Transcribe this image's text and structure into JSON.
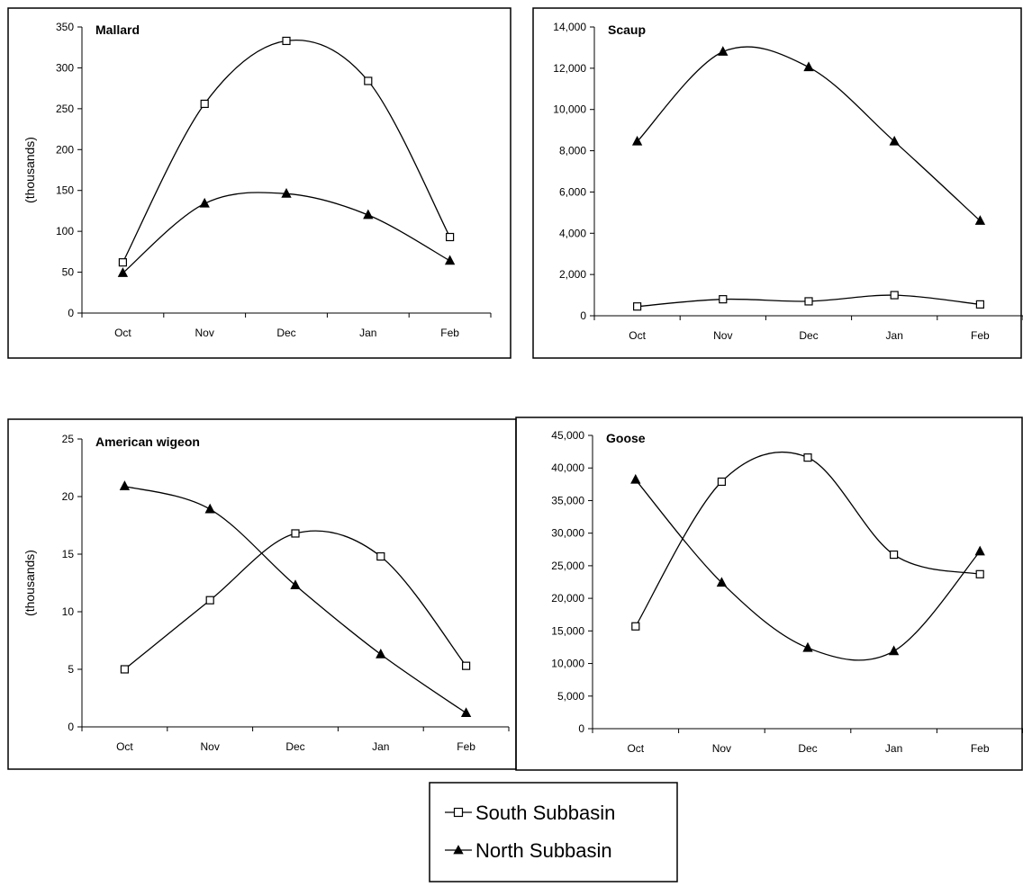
{
  "chart_data": [
    {
      "type": "line",
      "title": "Mallard",
      "ylabel": "(thousands)",
      "categories": [
        "Oct",
        "Nov",
        "Dec",
        "Jan",
        "Feb"
      ],
      "ylim": [
        0,
        350
      ],
      "yticks": [
        "0",
        "50",
        "100",
        "150",
        "200",
        "250",
        "300",
        "350"
      ],
      "series": [
        {
          "name": "South Subbasin",
          "values": [
            62,
            256,
            333,
            284,
            93
          ]
        },
        {
          "name": "North Subbasin",
          "values": [
            49,
            134,
            146,
            120,
            64
          ]
        }
      ]
    },
    {
      "type": "line",
      "title": "Scaup",
      "ylabel": "",
      "categories": [
        "Oct",
        "Nov",
        "Dec",
        "Jan",
        "Feb"
      ],
      "ylim": [
        0,
        14000
      ],
      "yticks": [
        "0",
        "2,000",
        "4,000",
        "6,000",
        "8,000",
        "10,000",
        "12,000",
        "14,000"
      ],
      "series": [
        {
          "name": "South Subbasin",
          "values": [
            450,
            800,
            700,
            1000,
            550
          ]
        },
        {
          "name": "North Subbasin",
          "values": [
            8450,
            12800,
            12050,
            8450,
            4600
          ]
        }
      ]
    },
    {
      "type": "line",
      "title": "American wigeon",
      "ylabel": "(thousands)",
      "categories": [
        "Oct",
        "Nov",
        "Dec",
        "Jan",
        "Feb"
      ],
      "ylim": [
        0,
        25
      ],
      "yticks": [
        "0",
        "5",
        "10",
        "15",
        "20",
        "25"
      ],
      "series": [
        {
          "name": "South Subbasin",
          "values": [
            5.0,
            11.0,
            16.8,
            14.8,
            5.3
          ]
        },
        {
          "name": "North Subbasin",
          "values": [
            20.9,
            18.9,
            12.3,
            6.3,
            1.2
          ]
        }
      ]
    },
    {
      "type": "line",
      "title": "Goose",
      "ylabel": "",
      "categories": [
        "Oct",
        "Nov",
        "Dec",
        "Jan",
        "Feb"
      ],
      "ylim": [
        0,
        45000
      ],
      "yticks": [
        "0",
        "5,000",
        "10,000",
        "15,000",
        "20,000",
        "25,000",
        "30,000",
        "35,000",
        "40,000",
        "45,000"
      ],
      "series": [
        {
          "name": "South Subbasin",
          "values": [
            15700,
            37900,
            41600,
            26700,
            23700
          ]
        },
        {
          "name": "North Subbasin",
          "values": [
            38200,
            22400,
            12400,
            11900,
            27200
          ]
        }
      ]
    }
  ],
  "legend": {
    "entries": [
      "South Subbasin",
      "North Subbasin"
    ]
  }
}
